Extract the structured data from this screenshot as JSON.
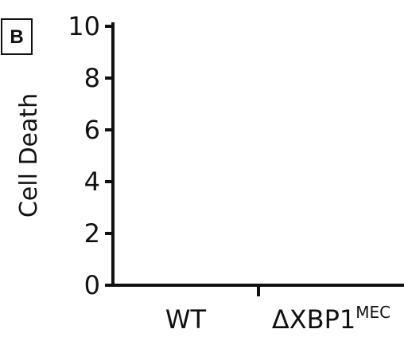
{
  "panel_label": "B",
  "chart_data": {
    "type": "bar",
    "title": "",
    "xlabel": "",
    "ylabel": "Cell Death",
    "categories": [
      {
        "main": "WT",
        "sup": ""
      },
      {
        "main": "ΔXBP1",
        "sup": "MEC"
      }
    ],
    "values": [
      0,
      0
    ],
    "ylim": [
      0,
      10
    ],
    "yticks": [
      0,
      2,
      4,
      6,
      8,
      10
    ],
    "grid": false,
    "legend": "none",
    "colors": {
      "axis": "#111111",
      "text": "#111111"
    }
  }
}
